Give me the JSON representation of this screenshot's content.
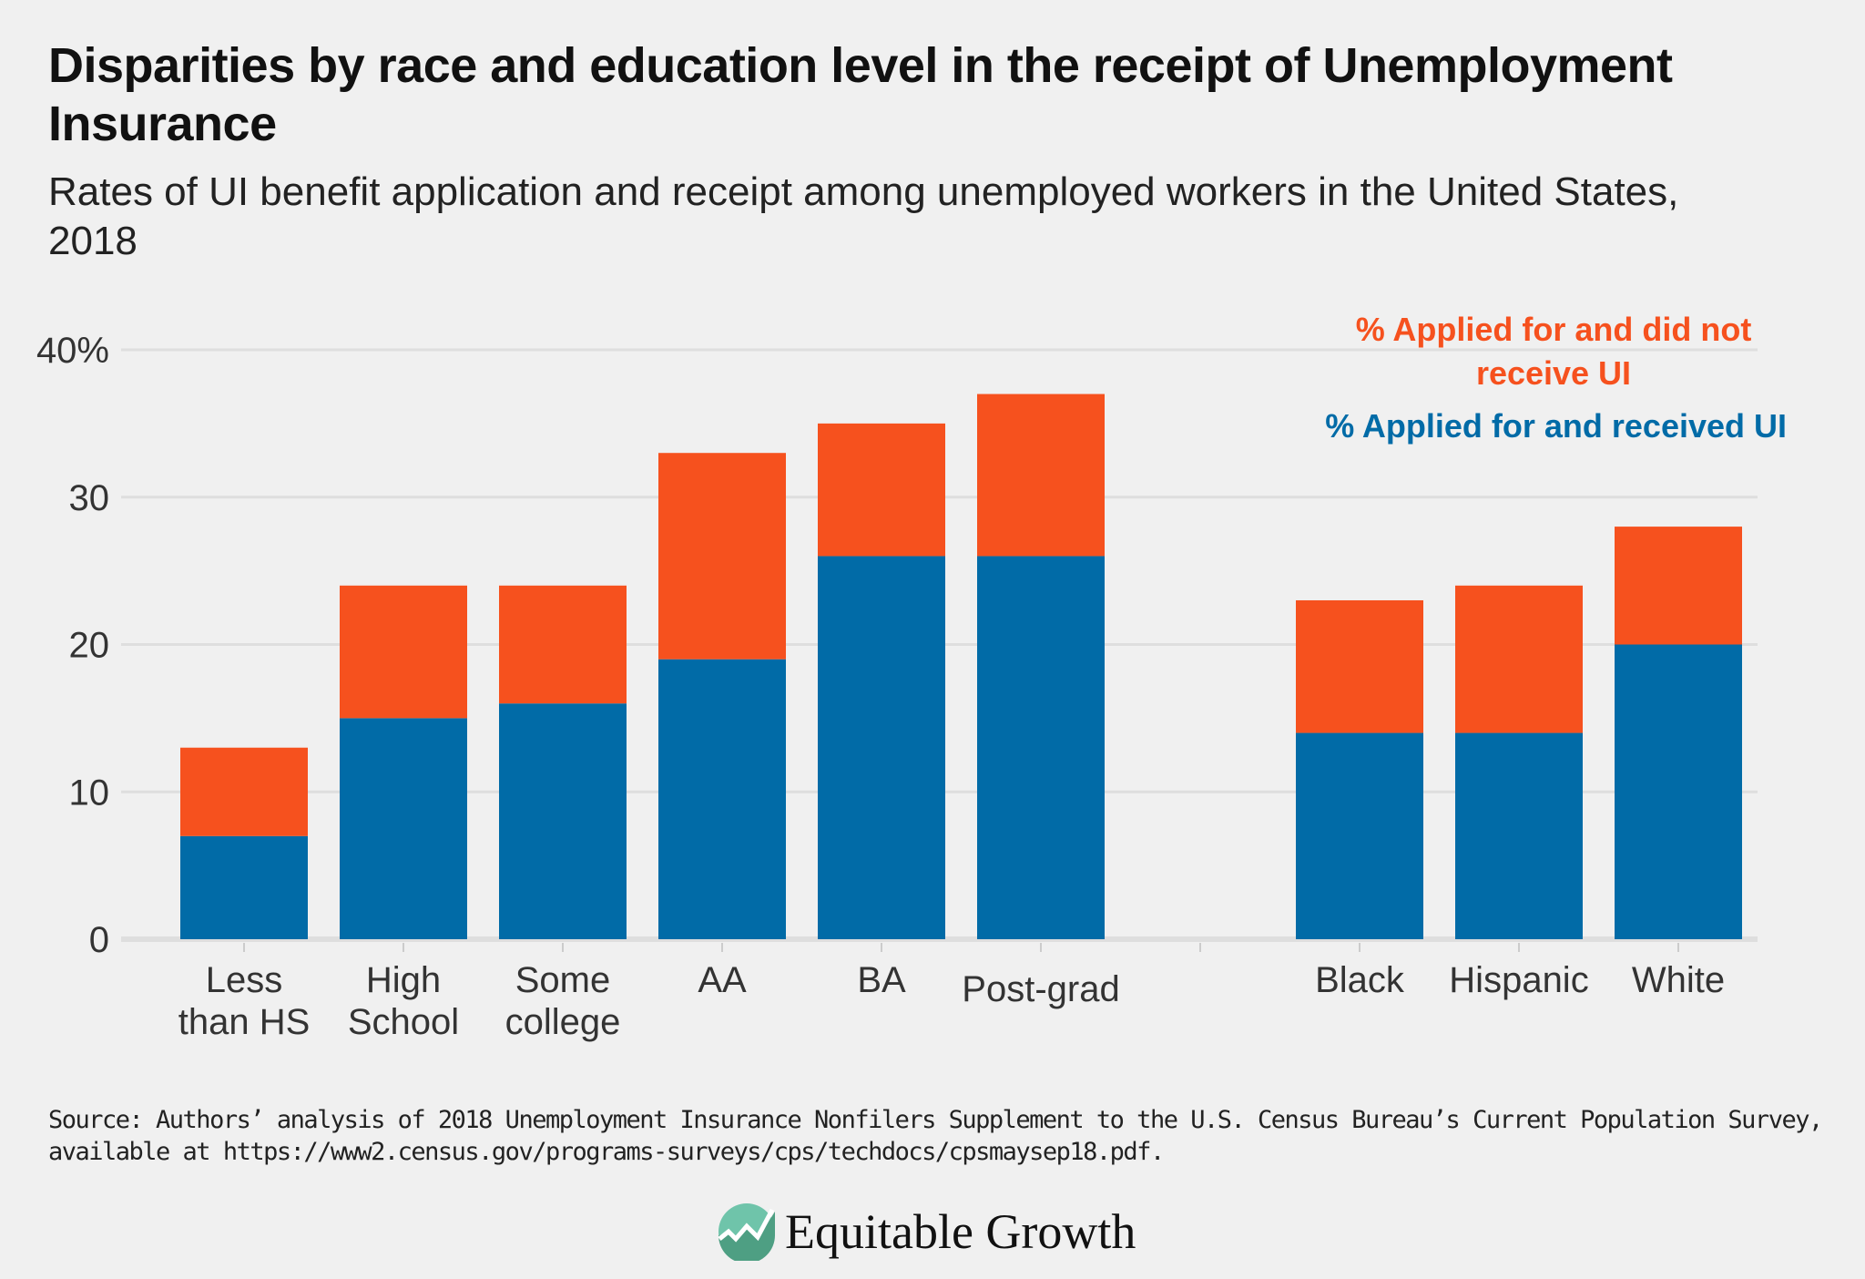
{
  "title": "Disparities by race and education level in the receipt of Unemployment Insurance",
  "subtitle": "Rates of UI benefit application and receipt among unemployed workers in the United States, 2018",
  "source": "Source: Authors’ analysis of 2018 Unemployment Insurance Nonfilers Supplement to the U.S. Census Bureau’s Current Population Survey, available at https://www2.census.gov/programs-surveys/cps/techdocs/cpsmaysep18.pdf.",
  "logo": {
    "text": "Equitable Growth",
    "icon": "rising-line-circle-logo"
  },
  "chart_data": {
    "type": "bar",
    "stacked": true,
    "title": "",
    "xlabel": "",
    "ylabel": "",
    "ylim": [
      0,
      40
    ],
    "yticks": [
      0,
      10,
      20,
      30,
      40
    ],
    "ytick_labels": [
      "0",
      "10",
      "20",
      "30",
      "40%"
    ],
    "grid": true,
    "legend": "top-right",
    "categories": [
      "Less than HS",
      "High School",
      "Some college",
      "AA",
      "BA",
      "Post-grad",
      "",
      "Black",
      "Hispanic",
      "White"
    ],
    "category_lines": [
      [
        "Less",
        "than HS"
      ],
      [
        "High",
        "School"
      ],
      [
        "Some",
        "college"
      ],
      [
        "AA"
      ],
      [
        "BA"
      ],
      [
        "Post-grad"
      ],
      [],
      [
        "Black"
      ],
      [
        "Hispanic"
      ],
      [
        "White"
      ]
    ],
    "series": [
      {
        "name": "% Applied for and received UI",
        "color": "#016ba7",
        "values": [
          7,
          15,
          16,
          19,
          26,
          26,
          null,
          14,
          14,
          20
        ]
      },
      {
        "name": "% Applied for and did not receive UI",
        "color": "#f6511e",
        "values": [
          6,
          9,
          8,
          14,
          9,
          11,
          null,
          9,
          10,
          8
        ]
      }
    ],
    "legend_lines": [
      {
        "series": 1,
        "lines": [
          "% Applied for and did not",
          "receive UI"
        ]
      },
      {
        "series": 0,
        "lines": [
          "% Applied for and received UI"
        ]
      }
    ]
  }
}
